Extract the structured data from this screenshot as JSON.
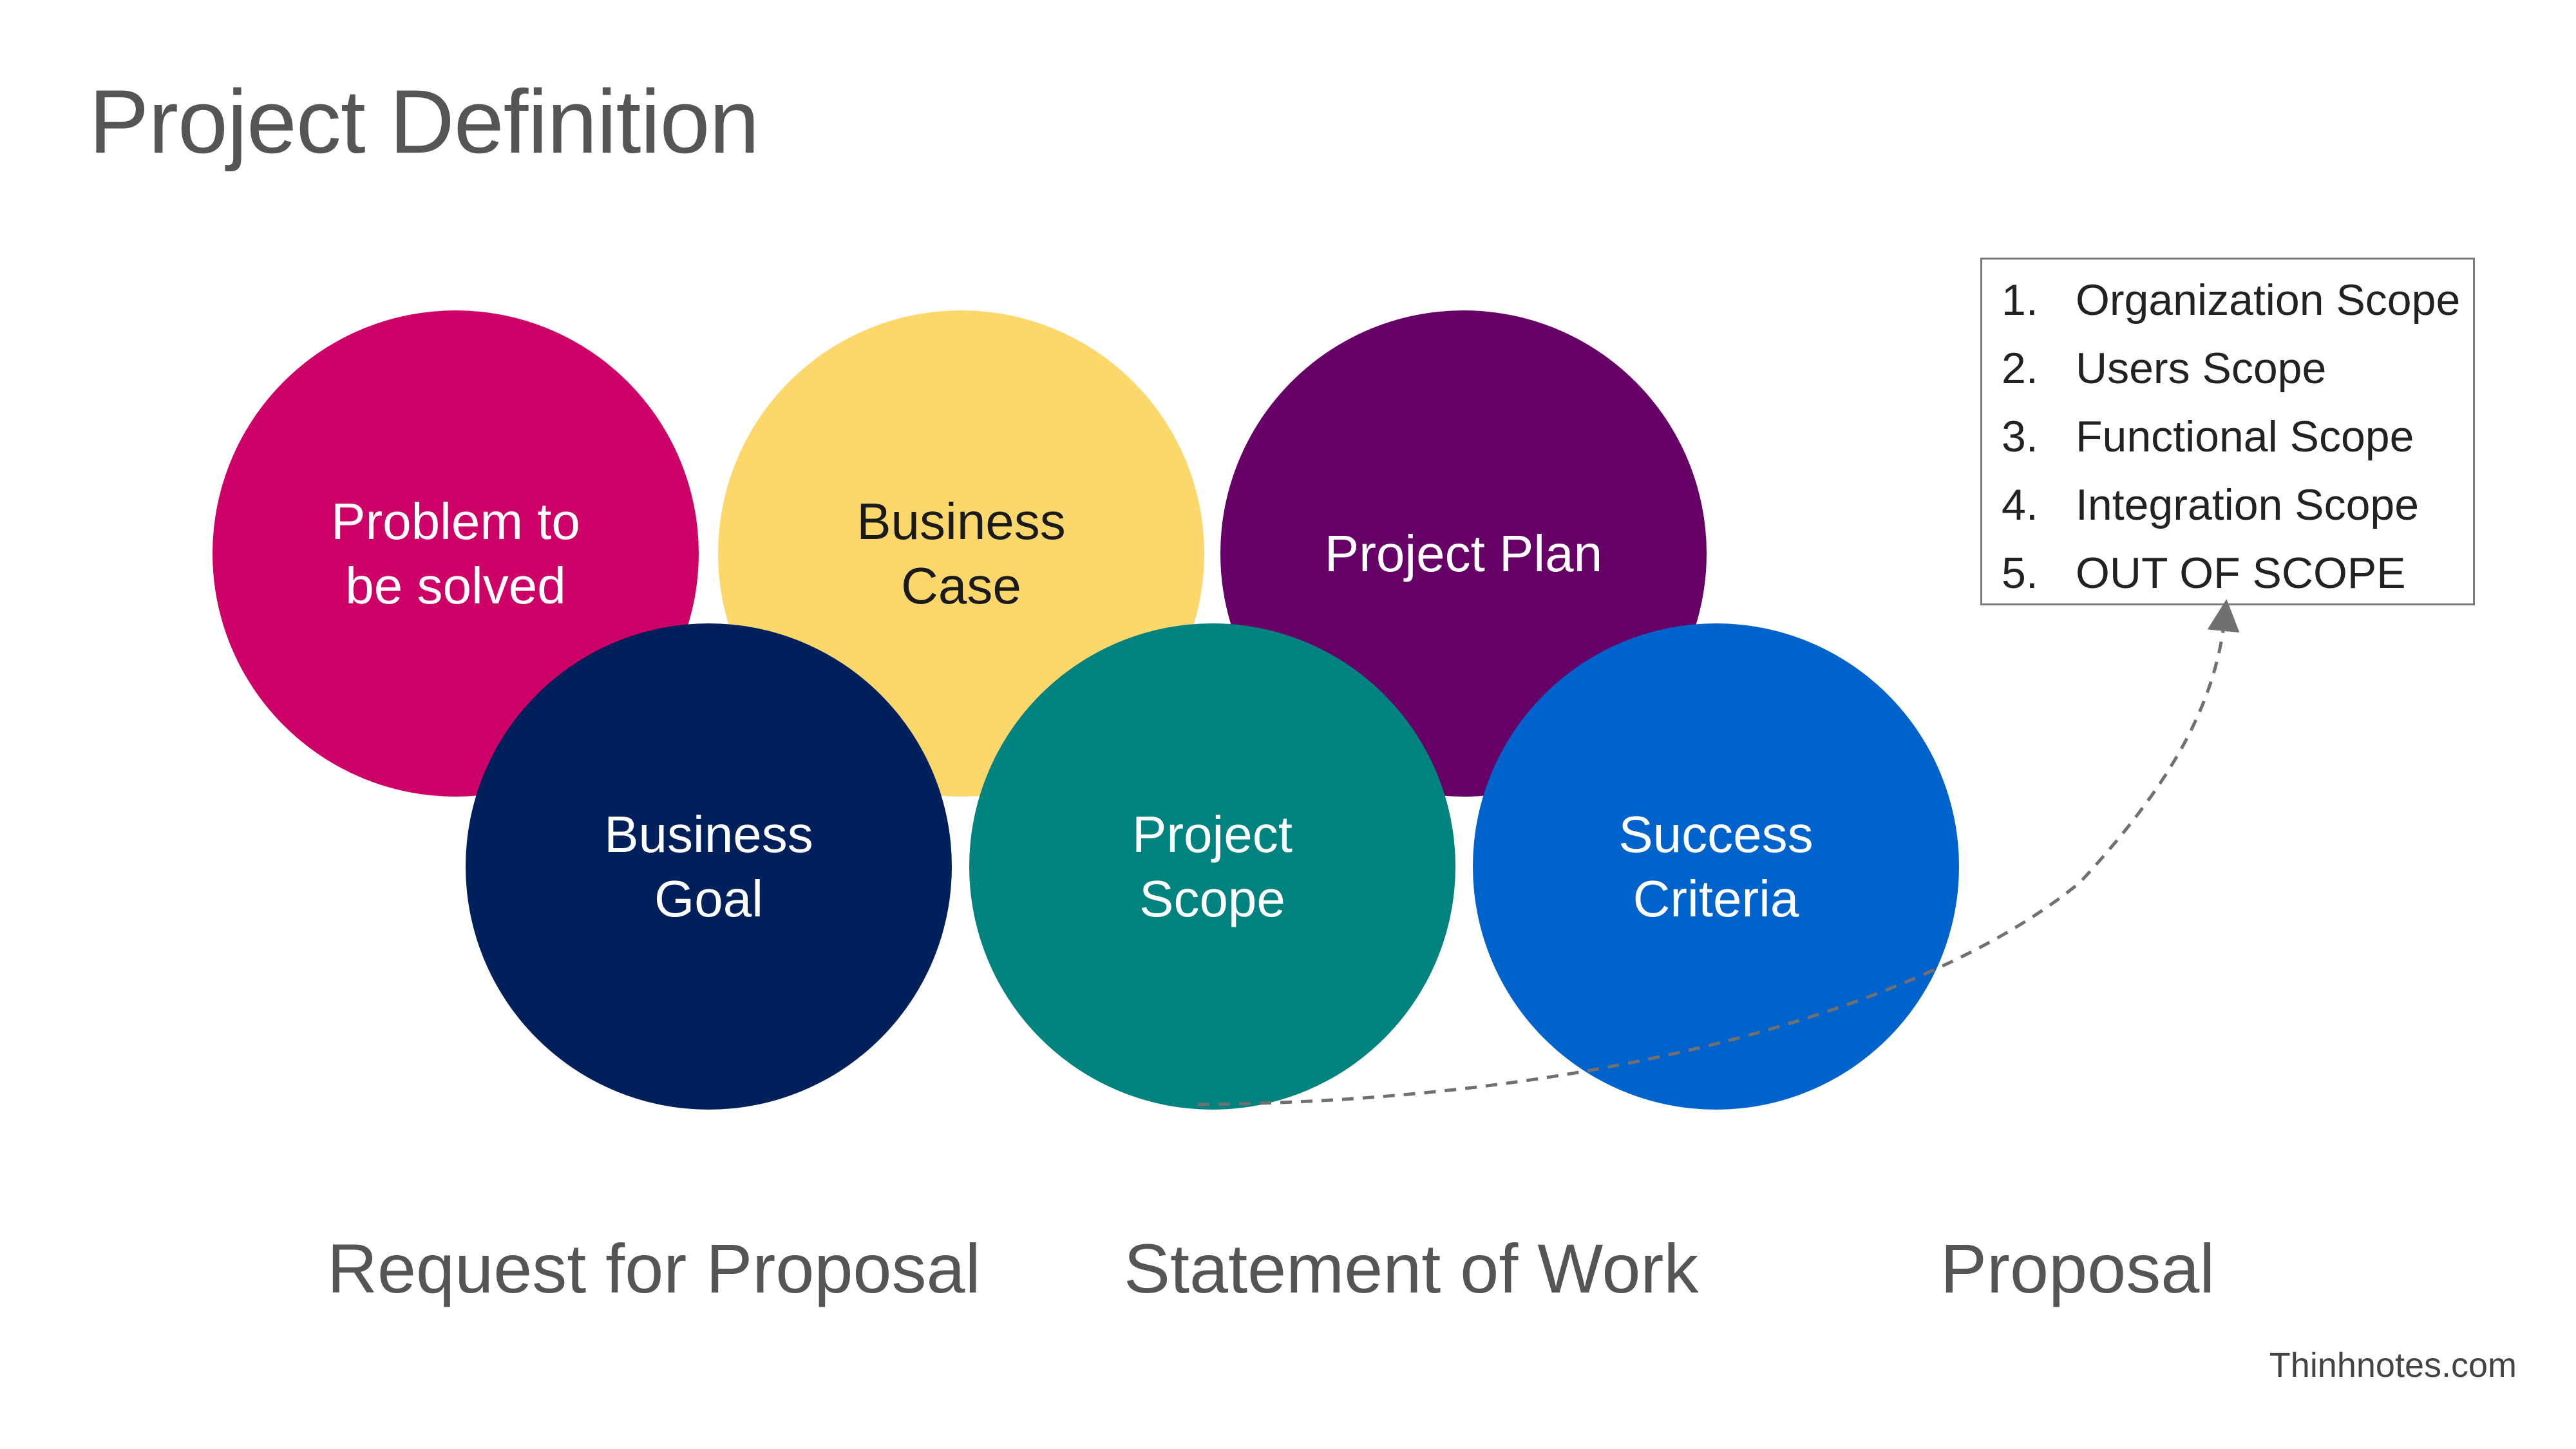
{
  "title": "Project Definition",
  "circles": [
    {
      "id": "problem",
      "lines": [
        "Problem to",
        "be solved"
      ],
      "fill": "#CC0066",
      "text_color": "#FFFFFF"
    },
    {
      "id": "business-case",
      "lines": [
        "Business",
        "Case"
      ],
      "fill": "#FCD76B",
      "text_color": "#1A1A1A"
    },
    {
      "id": "project-plan",
      "lines": [
        "Project Plan"
      ],
      "fill": "#660066",
      "text_color": "#FFFFFF"
    },
    {
      "id": "business-goal",
      "lines": [
        "Business",
        "Goal"
      ],
      "fill": "#00205B",
      "text_color": "#FFFFFF"
    },
    {
      "id": "project-scope",
      "lines": [
        "Project",
        "Scope"
      ],
      "fill": "#00827F",
      "text_color": "#FFFFFF"
    },
    {
      "id": "success-criteria",
      "lines": [
        "Success",
        "Criteria"
      ],
      "fill": "#0063CC",
      "text_color": "#FFFFFF"
    }
  ],
  "scope_list": [
    {
      "num": "1.",
      "text": "Organization Scope"
    },
    {
      "num": "2.",
      "text": "Users Scope"
    },
    {
      "num": "3.",
      "text": "Functional Scope"
    },
    {
      "num": "4.",
      "text": "Integration Scope"
    },
    {
      "num": "5.",
      "text": "OUT OF SCOPE"
    }
  ],
  "bottom_labels": {
    "rfp": "Request for Proposal",
    "sow": "Statement of Work",
    "proposal": "Proposal"
  },
  "credit": "Thinhnotes.com",
  "connector_color": "#707070"
}
